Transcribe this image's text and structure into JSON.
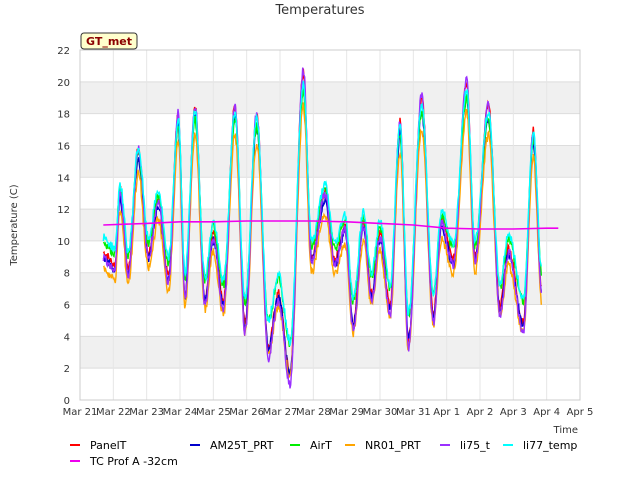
{
  "chart_data": {
    "type": "line",
    "title": "Temperatures",
    "xlabel": "Time",
    "ylabel": "Temperature (C)",
    "badge": "GT_met",
    "ylim": [
      0,
      22
    ],
    "yticks": [
      0,
      2,
      4,
      6,
      8,
      10,
      12,
      14,
      16,
      18,
      20,
      22
    ],
    "xlim": [
      0,
      15
    ],
    "xticks": [
      {
        "v": 0,
        "label": "Mar 21"
      },
      {
        "v": 1,
        "label": "Mar 22"
      },
      {
        "v": 2,
        "label": "Mar 23"
      },
      {
        "v": 3,
        "label": "Mar 24"
      },
      {
        "v": 4,
        "label": "Mar 25"
      },
      {
        "v": 5,
        "label": "Mar 26"
      },
      {
        "v": 6,
        "label": "Mar 27"
      },
      {
        "v": 7,
        "label": "Mar 28"
      },
      {
        "v": 8,
        "label": "Mar 29"
      },
      {
        "v": 9,
        "label": "Mar 30"
      },
      {
        "v": 10,
        "label": "Mar 31"
      },
      {
        "v": 11,
        "label": "Apr 1"
      },
      {
        "v": 12,
        "label": "Apr 2"
      },
      {
        "v": 13,
        "label": "Apr 3"
      },
      {
        "v": 14,
        "label": "Apr 4"
      },
      {
        "v": 15,
        "label": "Apr 5"
      }
    ],
    "grid": true,
    "legend_position": "bottom",
    "base": {
      "x": [
        0.7,
        1.05,
        1.2,
        1.45,
        1.75,
        2.05,
        2.35,
        2.65,
        2.95,
        3.15,
        3.45,
        3.75,
        4.0,
        4.3,
        4.65,
        4.95,
        5.3,
        5.65,
        5.95,
        6.3,
        6.7,
        6.95,
        7.35,
        7.65,
        7.95,
        8.2,
        8.5,
        8.75,
        9.0,
        9.3,
        9.6,
        9.85,
        10.25,
        10.6,
        10.85,
        11.2,
        11.6,
        11.85,
        12.25,
        12.6,
        12.85,
        13.3,
        13.6,
        13.85,
        14.3
      ],
      "min": [
        9.2,
        8.5,
        null,
        8.3,
        null,
        9.2,
        null,
        7.8,
        null,
        6.8,
        null,
        6.5,
        null,
        6.2,
        null,
        5.0,
        null,
        3.5,
        null,
        2.0,
        null,
        9.0,
        null,
        8.8,
        null,
        5.0,
        null,
        6.8,
        null,
        6.0,
        null,
        4.0,
        null,
        5.5,
        null,
        8.8,
        null,
        9.0,
        null,
        6.0,
        null,
        5.0,
        null,
        7.0,
        null
      ],
      "max": [
        null,
        null,
        13.0,
        null,
        15.5,
        null,
        null,
        null,
        17.5,
        null,
        18.0,
        null,
        null,
        null,
        18.0,
        null,
        17.5,
        null,
        null,
        null,
        20.0,
        null,
        null,
        null,
        null,
        null,
        11.0,
        null,
        null,
        null,
        17.0,
        null,
        18.5,
        null,
        null,
        null,
        19.5,
        null,
        18.0,
        null,
        null,
        null,
        16.5,
        null,
        null
      ]
    },
    "series": [
      {
        "name": "PanelT",
        "color": "#ff0000"
      },
      {
        "name": "AM25T_PRT",
        "color": "#0000cc"
      },
      {
        "name": "AirT",
        "color": "#00ee00"
      },
      {
        "name": "NR01_PRT",
        "color": "#ffa500"
      },
      {
        "name": "li75_t",
        "color": "#9b30ff"
      },
      {
        "name": "li77_temp",
        "color": "#00ffff"
      },
      {
        "name": "TC Prof A -32cm",
        "color": "#ee00ee",
        "x": [
          0.7,
          2,
          3,
          4,
          5,
          6,
          7,
          8,
          9,
          10,
          11,
          12,
          13,
          14,
          14.35
        ],
        "values": [
          11.0,
          11.1,
          11.2,
          11.2,
          11.25,
          11.25,
          11.25,
          11.2,
          11.1,
          11.0,
          10.8,
          10.75,
          10.75,
          10.8,
          10.8
        ]
      }
    ]
  }
}
